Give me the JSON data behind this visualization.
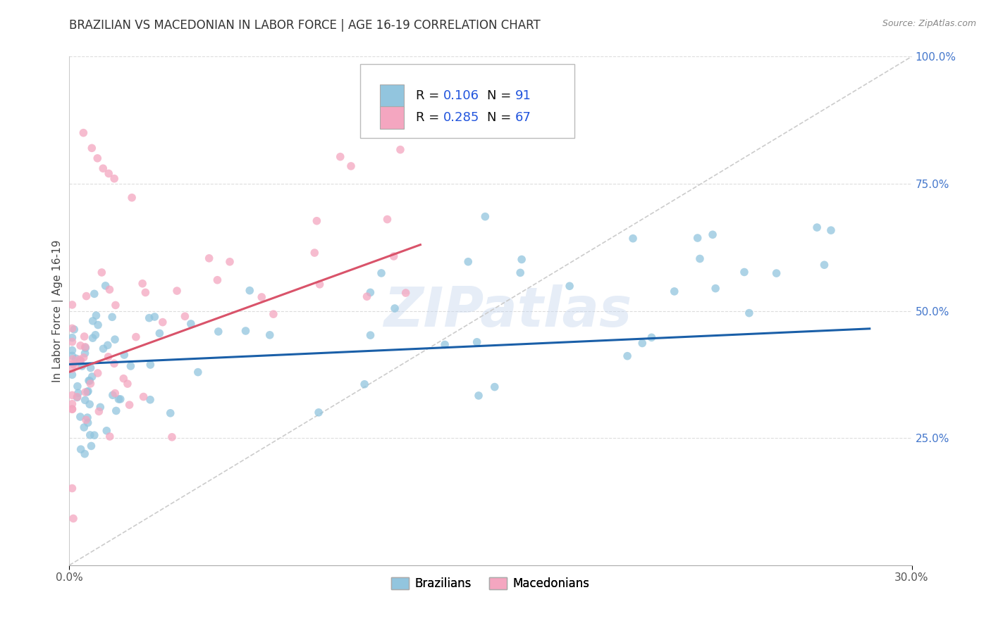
{
  "title": "BRAZILIAN VS MACEDONIAN IN LABOR FORCE | AGE 16-19 CORRELATION CHART",
  "source_text": "Source: ZipAtlas.com",
  "ylabel": "In Labor Force | Age 16-19",
  "xlim": [
    0.0,
    0.3
  ],
  "ylim": [
    0.0,
    1.0
  ],
  "xtick_vals": [
    0.0,
    0.3
  ],
  "xtick_labels": [
    "0.0%",
    "30.0%"
  ],
  "ytick_vals": [
    0.25,
    0.5,
    0.75,
    1.0
  ],
  "ytick_labels": [
    "25.0%",
    "50.0%",
    "75.0%",
    "100.0%"
  ],
  "color_blue": "#92c5de",
  "color_pink": "#f4a6c0",
  "color_blue_line": "#1a5fa8",
  "color_pink_line": "#d9536a",
  "color_ref_line": "#cccccc",
  "watermark": "ZIPatlas",
  "title_fontsize": 12,
  "label_fontsize": 11,
  "tick_fontsize": 11,
  "legend_blue_r": "0.106",
  "legend_blue_n": "91",
  "legend_pink_r": "0.285",
  "legend_pink_n": "67"
}
